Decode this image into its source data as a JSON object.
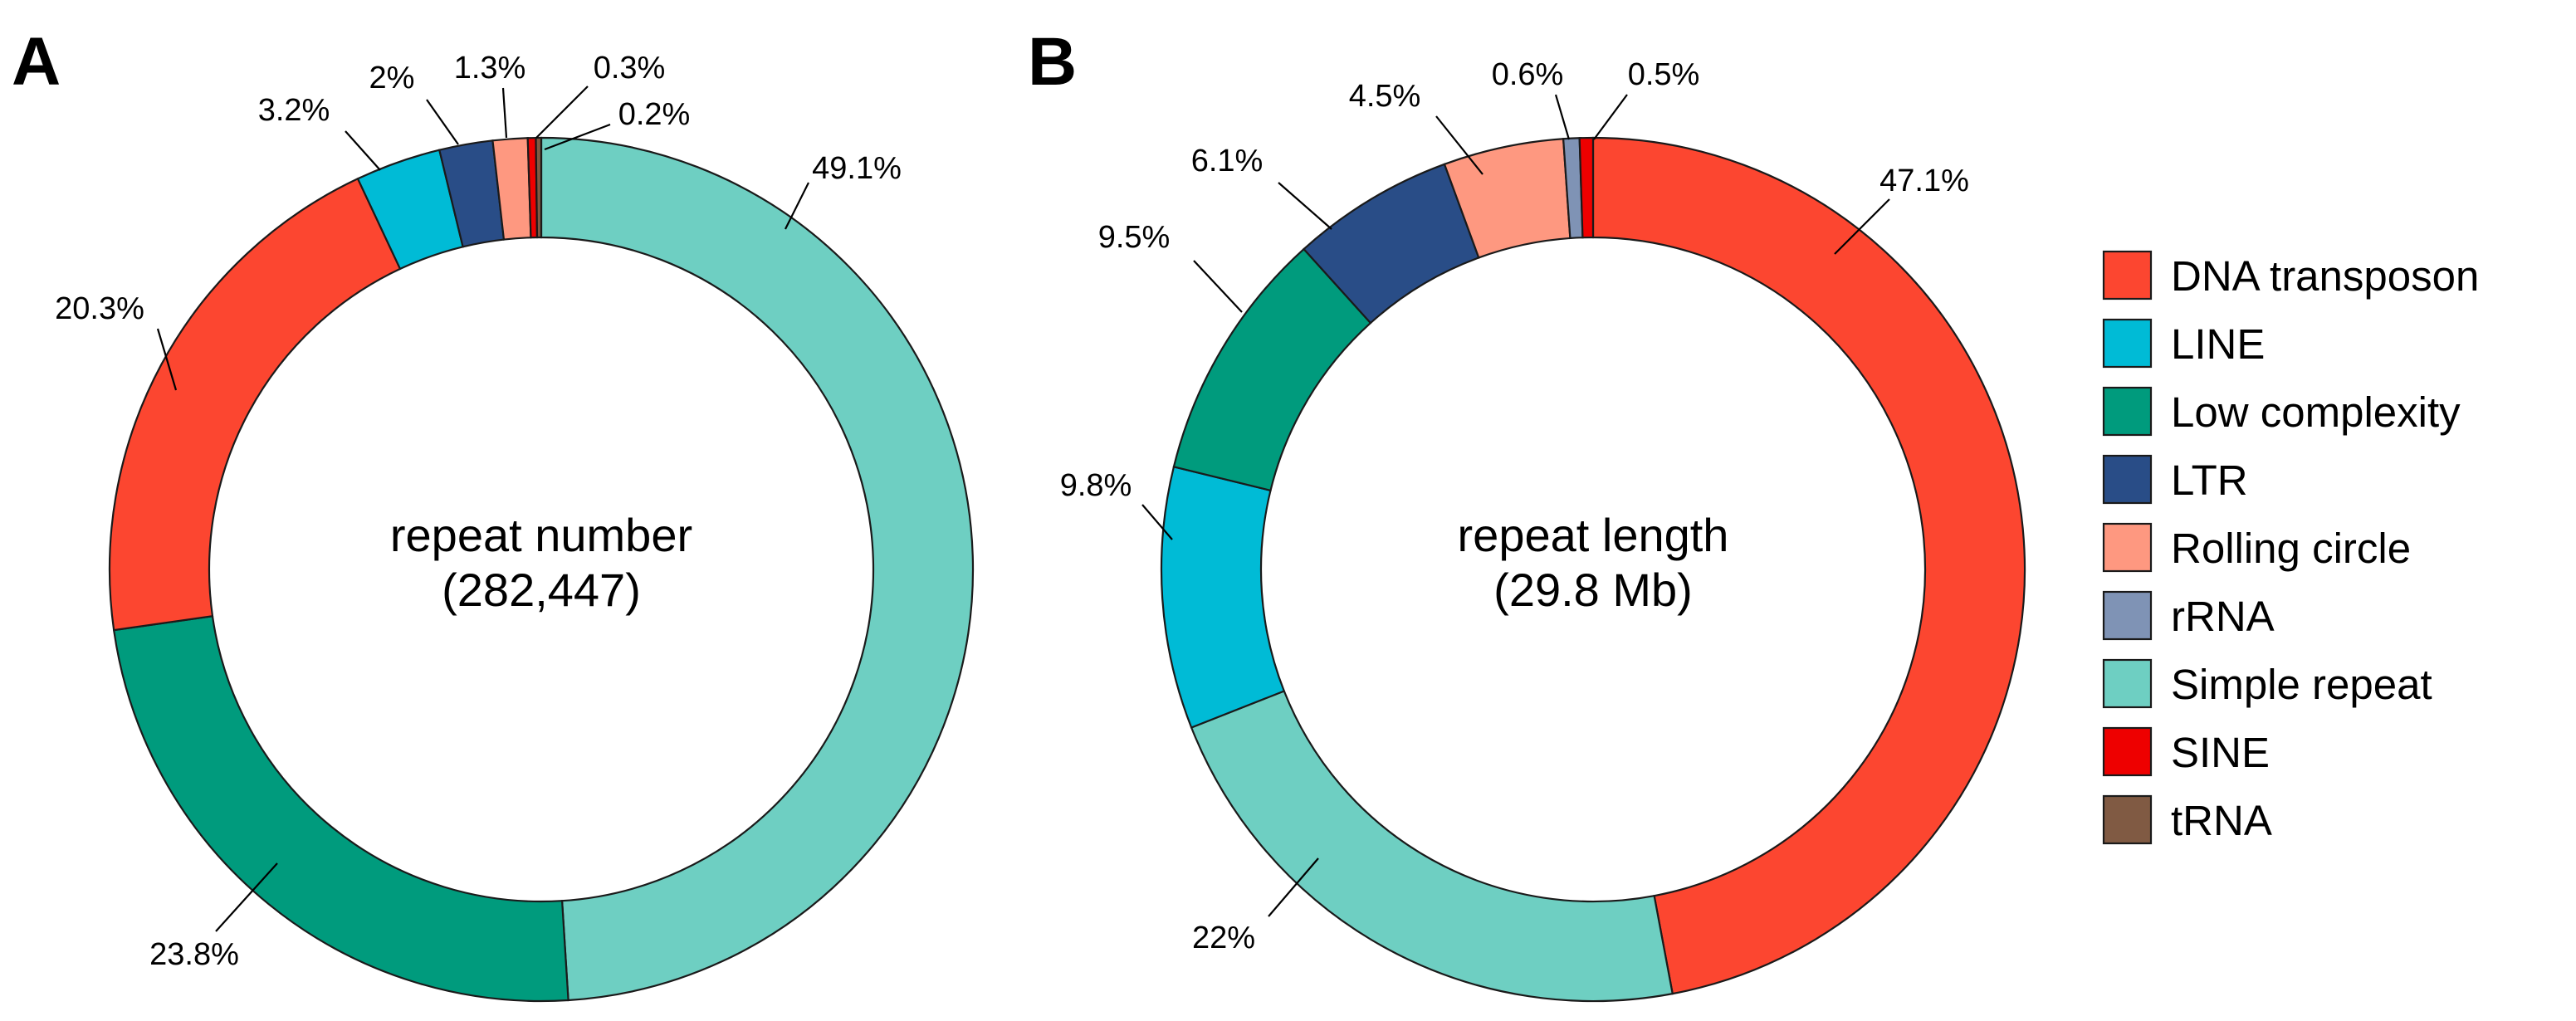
{
  "chart_data": [
    {
      "type": "pie",
      "variant": "donut",
      "panel": "A",
      "center_label": "repeat number",
      "center_value": "(282,447)",
      "slices": [
        {
          "category": "Simple repeat",
          "value": 49.1,
          "label": "49.1%"
        },
        {
          "category": "Low complexity",
          "value": 23.8,
          "label": "23.8%"
        },
        {
          "category": "DNA transposon",
          "value": 20.3,
          "label": "20.3%"
        },
        {
          "category": "LINE",
          "value": 3.2,
          "label": "3.2%"
        },
        {
          "category": "LTR",
          "value": 2.0,
          "label": "2%"
        },
        {
          "category": "Rolling circle",
          "value": 1.3,
          "label": "1.3%"
        },
        {
          "category": "SINE",
          "value": 0.3,
          "label": "0.3%"
        },
        {
          "category": "tRNA",
          "value": 0.2,
          "label": "0.2%"
        }
      ]
    },
    {
      "type": "pie",
      "variant": "donut",
      "panel": "B",
      "center_label": "repeat length",
      "center_value": "(29.8 Mb)",
      "slices": [
        {
          "category": "DNA transposon",
          "value": 47.1,
          "label": "47.1%"
        },
        {
          "category": "Simple repeat",
          "value": 22.0,
          "label": "22%"
        },
        {
          "category": "LINE",
          "value": 9.8,
          "label": "9.8%"
        },
        {
          "category": "Low complexity",
          "value": 9.5,
          "label": "9.5%"
        },
        {
          "category": "LTR",
          "value": 6.1,
          "label": "6.1%"
        },
        {
          "category": "Rolling circle",
          "value": 4.5,
          "label": "4.5%"
        },
        {
          "category": "rRNA",
          "value": 0.6,
          "label": "0.6%"
        },
        {
          "category": "SINE",
          "value": 0.5,
          "label": "0.5%"
        }
      ]
    }
  ],
  "legend": {
    "position": "right",
    "items": [
      {
        "label": "DNA transposon",
        "color": "#fc4630"
      },
      {
        "label": "LINE",
        "color": "#00bbd6"
      },
      {
        "label": "Low complexity",
        "color": "#009b7d"
      },
      {
        "label": "LTR",
        "color": "#294d87"
      },
      {
        "label": "Rolling circle",
        "color": "#fe9880"
      },
      {
        "label": "rRNA",
        "color": "#7f93b5"
      },
      {
        "label": "Simple repeat",
        "color": "#6ecfc2"
      },
      {
        "label": "SINE",
        "color": "#ee0000"
      },
      {
        "label": "tRNA",
        "color": "#805a43"
      }
    ]
  }
}
